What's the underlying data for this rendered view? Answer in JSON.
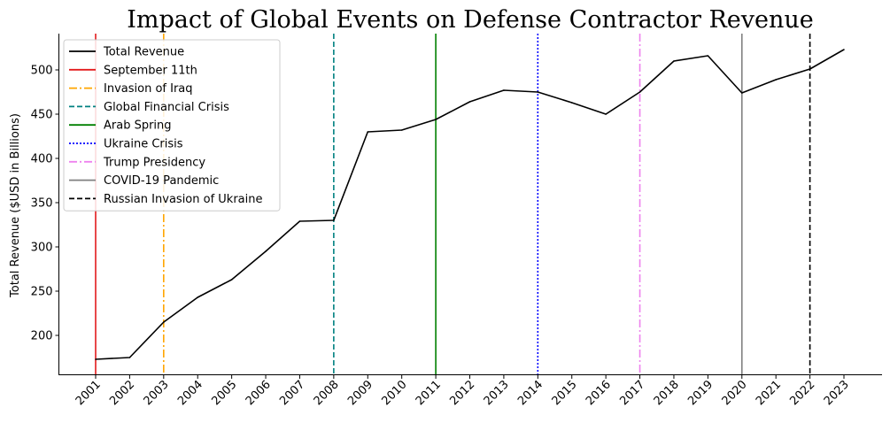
{
  "chart_data": {
    "type": "line",
    "title": "Impact of Global Events on Defense Contractor Revenue",
    "xlabel": "",
    "ylabel": "Total Revenue ($USD in Billions)",
    "x": [
      "2001",
      "2002",
      "2003",
      "2004",
      "2005",
      "2006",
      "2007",
      "2008",
      "2009",
      "2010",
      "2011",
      "2012",
      "2013",
      "2014",
      "2015",
      "2016",
      "2017",
      "2018",
      "2019",
      "2020",
      "2021",
      "2022",
      "2023"
    ],
    "series": [
      {
        "name": "Total Revenue",
        "color": "#000000",
        "values": [
          173,
          175,
          215,
          243,
          263,
          295,
          329,
          330,
          430,
          432,
          444,
          464,
          477,
          475,
          463,
          450,
          475,
          510,
          516,
          474,
          489,
          501,
          523
        ]
      }
    ],
    "events": [
      {
        "name": "September 11th",
        "year": "2001",
        "color": "#e31a1c",
        "dash": "solid"
      },
      {
        "name": "Invasion of Iraq",
        "year": "2003",
        "color": "#ffa500",
        "dash": "dashdot"
      },
      {
        "name": "Global Financial Crisis",
        "year": "2008",
        "color": "#008080",
        "dash": "dashed"
      },
      {
        "name": "Arab Spring",
        "year": "2011",
        "color": "#008000",
        "dash": "solid"
      },
      {
        "name": "Ukraine Crisis",
        "year": "2014",
        "color": "#0000ff",
        "dash": "dotted"
      },
      {
        "name": "Trump Presidency",
        "year": "2017",
        "color": "#ee82ee",
        "dash": "dashdot"
      },
      {
        "name": "COVID-19 Pandemic",
        "year": "2020",
        "color": "#808080",
        "dash": "solid"
      },
      {
        "name": "Russian Invasion of Ukraine",
        "year": "2022",
        "color": "#000000",
        "dash": "dashed"
      }
    ],
    "yticks": [
      200,
      250,
      300,
      350,
      400,
      450,
      500
    ],
    "ylim": [
      155,
      541
    ],
    "grid": false,
    "legend": "top-left"
  }
}
